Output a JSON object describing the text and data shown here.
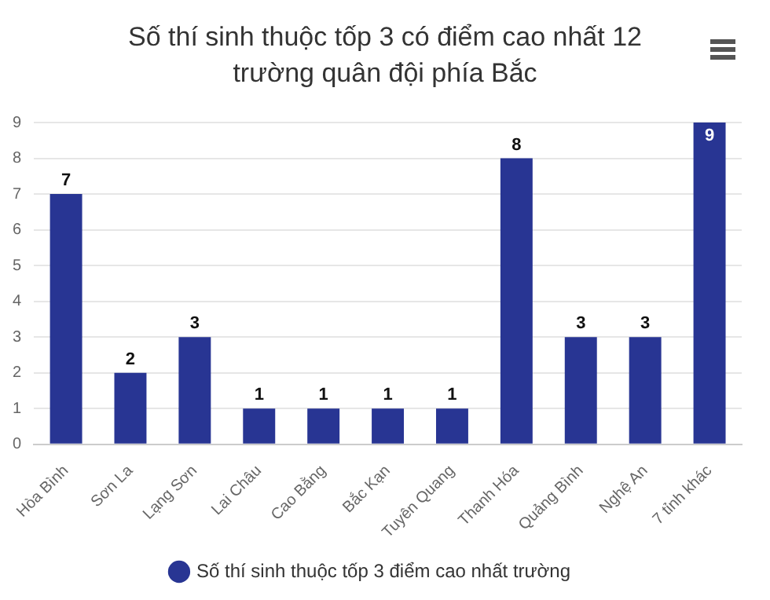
{
  "chart_data": {
    "type": "bar",
    "title": "Số thí sinh thuộc tốp 3 có điểm cao nhất 12 trường quân đội phía Bắc",
    "categories": [
      "Hòa Bình",
      "Sơn La",
      "Lạng Sơn",
      "Lai Châu",
      "Cao Bằng",
      "Bắc Kạn",
      "Tuyên Quang",
      "Thanh Hóa",
      "Quảng Bình",
      "Nghệ An",
      "7 tỉnh khác"
    ],
    "series": [
      {
        "name": "Số thí sinh thuộc tốp 3 điểm cao nhất trường",
        "color": "#283593",
        "values": [
          7,
          2,
          3,
          1,
          1,
          1,
          1,
          8,
          3,
          3,
          9
        ]
      }
    ],
    "ylim": [
      0,
      9
    ],
    "yticks": [
      0,
      1,
      2,
      3,
      4,
      5,
      6,
      7,
      8,
      9
    ],
    "grid": "y",
    "legend": "bottom",
    "data_labels": true
  }
}
